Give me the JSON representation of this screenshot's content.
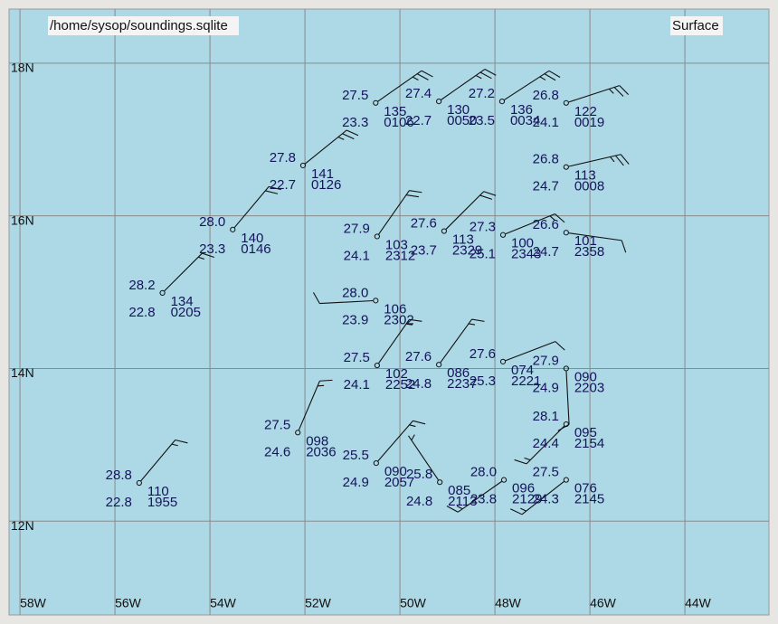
{
  "map": {
    "file": "/home/sysop/soundings.sqlite",
    "level": "Surface",
    "xlim": [
      -58.23,
      -42.23
    ],
    "ylim": [
      10.77,
      18.71
    ],
    "lon_ticks": [
      {
        "value": -58,
        "label": "58W"
      },
      {
        "value": -56,
        "label": "56W"
      },
      {
        "value": -54,
        "label": "54W"
      },
      {
        "value": -52,
        "label": "52W"
      },
      {
        "value": -50,
        "label": "50W"
      },
      {
        "value": -48,
        "label": "48W"
      },
      {
        "value": -46,
        "label": "46W"
      },
      {
        "value": -44,
        "label": "44W"
      }
    ],
    "lat_ticks": [
      {
        "value": 18,
        "label": "18N"
      },
      {
        "value": 16,
        "label": "16N"
      },
      {
        "value": 14,
        "label": "14N"
      },
      {
        "value": 12,
        "label": "12N"
      }
    ],
    "stations": [
      {
        "lon": -50.51,
        "lat": 17.48,
        "temp": "27.5",
        "dewpoint": "23.3",
        "pressure": "135",
        "time": "0106",
        "wind_dir": 55,
        "wind_kt": 25
      },
      {
        "lon": -49.18,
        "lat": 17.5,
        "temp": "27.4",
        "dewpoint": "22.7",
        "pressure": "130",
        "time": "0050",
        "wind_dir": 55,
        "wind_kt": 25
      },
      {
        "lon": -47.85,
        "lat": 17.5,
        "temp": "27.2",
        "dewpoint": "23.5",
        "pressure": "136",
        "time": "0034",
        "wind_dir": 57,
        "wind_kt": 25
      },
      {
        "lon": -46.5,
        "lat": 17.48,
        "temp": "26.8",
        "dewpoint": "24.1",
        "pressure": "122",
        "time": "0019",
        "wind_dir": 72,
        "wind_kt": 25
      },
      {
        "lon": -52.04,
        "lat": 16.66,
        "temp": "27.8",
        "dewpoint": "22.7",
        "pressure": "141",
        "time": "0126",
        "wind_dir": 51,
        "wind_kt": 25
      },
      {
        "lon": -46.5,
        "lat": 16.64,
        "temp": "26.8",
        "dewpoint": "24.7",
        "pressure": "113",
        "time": "0008",
        "wind_dir": 77,
        "wind_kt": 25
      },
      {
        "lon": -53.52,
        "lat": 15.82,
        "temp": "28.0",
        "dewpoint": "23.3",
        "pressure": "140",
        "time": "0146",
        "wind_dir": 40,
        "wind_kt": 20
      },
      {
        "lon": -50.48,
        "lat": 15.73,
        "temp": "27.9",
        "dewpoint": "24.1",
        "pressure": "103",
        "time": "2312",
        "wind_dir": 35,
        "wind_kt": 20
      },
      {
        "lon": -49.07,
        "lat": 15.8,
        "temp": "27.6",
        "dewpoint": "23.7",
        "pressure": "113",
        "time": "2329",
        "wind_dir": 45,
        "wind_kt": 20
      },
      {
        "lon": -47.83,
        "lat": 15.75,
        "temp": "27.3",
        "dewpoint": "25.1",
        "pressure": "100",
        "time": "2343",
        "wind_dir": 68,
        "wind_kt": 15
      },
      {
        "lon": -46.5,
        "lat": 15.78,
        "temp": "26.6",
        "dewpoint": "24.7",
        "pressure": "101",
        "time": "2358",
        "wind_dir": 98,
        "wind_kt": 10
      },
      {
        "lon": -55.0,
        "lat": 14.99,
        "temp": "28.2",
        "dewpoint": "22.8",
        "pressure": "134",
        "time": "0205",
        "wind_dir": 45,
        "wind_kt": 15
      },
      {
        "lon": -50.51,
        "lat": 14.89,
        "temp": "28.0",
        "dewpoint": "23.9",
        "pressure": "106",
        "time": "2302",
        "wind_dir": 267,
        "wind_kt": 10
      },
      {
        "lon": -50.48,
        "lat": 14.04,
        "temp": "27.5",
        "dewpoint": "24.1",
        "pressure": "102",
        "time": "2252",
        "wind_dir": 35,
        "wind_kt": 15
      },
      {
        "lon": -49.18,
        "lat": 14.05,
        "temp": "27.6",
        "dewpoint": "24.8",
        "pressure": "086",
        "time": "2237",
        "wind_dir": 36,
        "wind_kt": 15
      },
      {
        "lon": -47.83,
        "lat": 14.09,
        "temp": "27.6",
        "dewpoint": "25.3",
        "pressure": "074",
        "time": "2221",
        "wind_dir": 69,
        "wind_kt": 10
      },
      {
        "lon": -46.5,
        "lat": 14.0,
        "temp": "27.9",
        "dewpoint": "24.9",
        "pressure": "090",
        "time": "2203",
        "wind_dir": 177,
        "wind_kt": 10
      },
      {
        "lon": -52.15,
        "lat": 13.16,
        "temp": "27.5",
        "dewpoint": "24.6",
        "pressure": "098",
        "time": "2036",
        "wind_dir": 23,
        "wind_kt": 15
      },
      {
        "lon": -46.5,
        "lat": 13.27,
        "temp": "28.1",
        "dewpoint": "24.4",
        "pressure": "095",
        "time": "2154",
        "wind_dir": 225,
        "wind_kt": 15
      },
      {
        "lon": -50.5,
        "lat": 12.76,
        "temp": "25.5",
        "dewpoint": "24.9",
        "pressure": "090",
        "time": "2057",
        "wind_dir": 41,
        "wind_kt": 15
      },
      {
        "lon": -49.16,
        "lat": 12.51,
        "temp": "25.8",
        "dewpoint": "24.8",
        "pressure": "085",
        "time": "2113",
        "wind_dir": 326,
        "wind_kt": 5
      },
      {
        "lon": -47.81,
        "lat": 12.54,
        "temp": "28.0",
        "dewpoint": "23.8",
        "pressure": "096",
        "time": "2129",
        "wind_dir": 235,
        "wind_kt": 15
      },
      {
        "lon": -46.5,
        "lat": 12.54,
        "temp": "27.5",
        "dewpoint": "24.3",
        "pressure": "076",
        "time": "2145",
        "wind_dir": 232,
        "wind_kt": 15
      },
      {
        "lon": -55.49,
        "lat": 12.5,
        "temp": "28.8",
        "dewpoint": "22.8",
        "pressure": "110",
        "time": "1955",
        "wind_dir": 40,
        "wind_kt": 15
      }
    ]
  }
}
